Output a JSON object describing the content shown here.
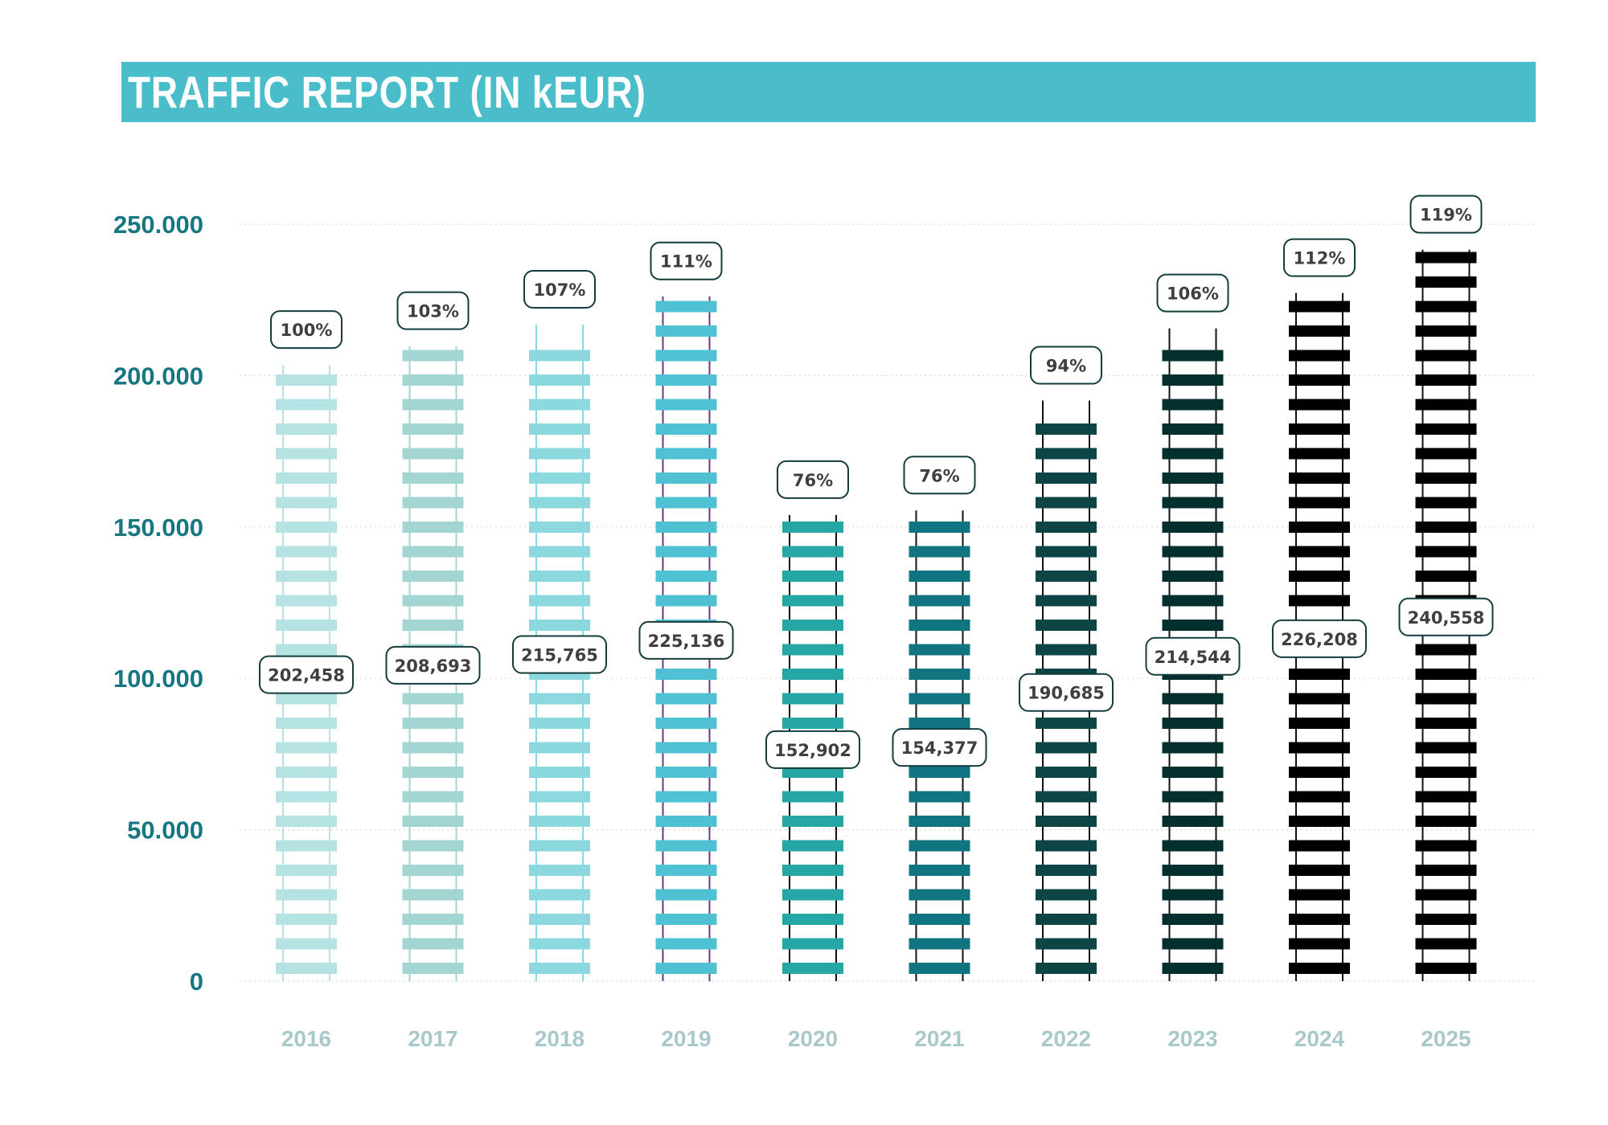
{
  "title": "TRAFFIC REPORT (IN kEUR)",
  "chart_data": {
    "type": "bar",
    "title": "TRAFFIC REPORT (IN kEUR)",
    "xlabel": "",
    "ylabel": "",
    "ylim": [
      0,
      250000
    ],
    "y_ticks": [
      "0",
      "50.000",
      "100.000",
      "150.000",
      "200.000",
      "250.000"
    ],
    "y_tick_values": [
      0,
      50000,
      100000,
      150000,
      200000,
      250000
    ],
    "grid": true,
    "legend": "none",
    "categories": [
      "2016",
      "2017",
      "2018",
      "2019",
      "2020",
      "2021",
      "2022",
      "2023",
      "2024",
      "2025"
    ],
    "values": [
      202458,
      208693,
      215765,
      225136,
      152902,
      154377,
      190685,
      214544,
      226208,
      240558
    ],
    "value_labels": [
      "202,458",
      "208,693",
      "215,765",
      "225,136",
      "152,902",
      "154,377",
      "190,685",
      "214,544",
      "226,208",
      "240,558"
    ],
    "percent_labels": [
      "100%",
      "103%",
      "107%",
      "111%",
      "76%",
      "76%",
      "94%",
      "106%",
      "112%",
      "119%"
    ],
    "colors": [
      "#b5e3e3",
      "#a3d6d3",
      "#8bd8de",
      "#4ec2d2",
      "#27a6a6",
      "#107580",
      "#0d4545",
      "#042f2f",
      "#000000",
      "#000000"
    ],
    "rail_colors": [
      "#b5e3e3",
      "#a3d6d3",
      "#8bd8de",
      "#6b3a7d",
      "#111111",
      "#111111",
      "#111111",
      "#111111",
      "#111111",
      "#111111"
    ]
  }
}
